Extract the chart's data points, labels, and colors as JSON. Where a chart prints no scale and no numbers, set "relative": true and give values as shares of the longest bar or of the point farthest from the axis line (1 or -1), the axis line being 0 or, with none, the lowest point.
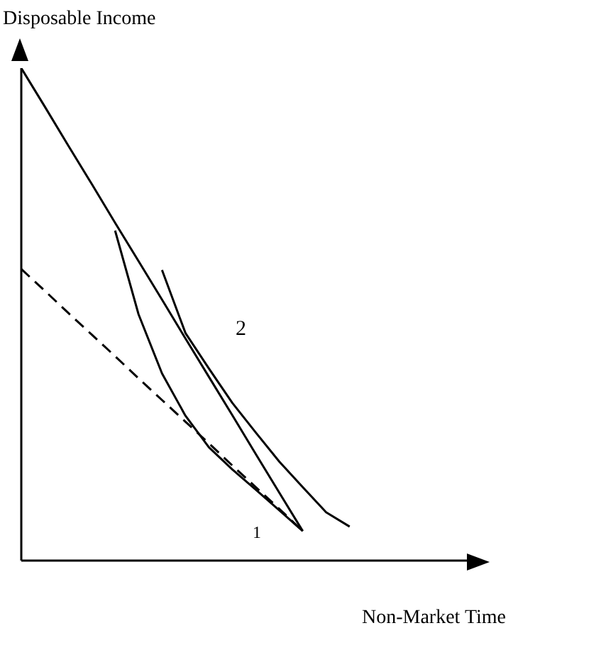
{
  "chart_data": {
    "type": "line",
    "relative": true,
    "xlabel": "Non-Market Time",
    "ylabel": "Disposable Income",
    "grid": false,
    "marker": "none",
    "categories": [
      null,
      null,
      null,
      null,
      null,
      null,
      null,
      null,
      null,
      null,
      null,
      null,
      null,
      null,
      null,
      null,
      null,
      null,
      null,
      null
    ],
    "series": [
      {
        "color": "#000000",
        "line_style": "solid",
        "values": [
          1,
          0.922,
          0.843,
          0.765,
          0.686,
          0.608,
          0.53,
          0.451,
          0.373,
          0.295,
          0.216,
          0.138,
          0.06,
          null,
          null,
          null,
          null,
          null,
          null,
          null
        ]
      },
      {
        "color": "#000000",
        "line_style": "dashed",
        "values": [
          0.592,
          0.548,
          0.503,
          0.459,
          0.415,
          0.37,
          0.326,
          0.282,
          0.238,
          0.193,
          0.149,
          0.105,
          0.06,
          null,
          null,
          null,
          null,
          null,
          null,
          null
        ]
      },
      {
        "color": "#000000",
        "line_style": "solid",
        "values": [
          null,
          null,
          null,
          null,
          0.67,
          0.5,
          0.38,
          0.294,
          0.23,
          0.185,
          0.144,
          0.102,
          0.06,
          null,
          null,
          null,
          null,
          null,
          null,
          null
        ]
      },
      {
        "color": "#000000",
        "line_style": "solid",
        "values": [
          null,
          null,
          null,
          null,
          null,
          null,
          0.59,
          0.462,
          0.39,
          0.32,
          0.26,
          0.201,
          0.149,
          0.098,
          0.069,
          null,
          null,
          null,
          null,
          null
        ]
      }
    ],
    "annotations": [
      "2",
      "1"
    ]
  }
}
